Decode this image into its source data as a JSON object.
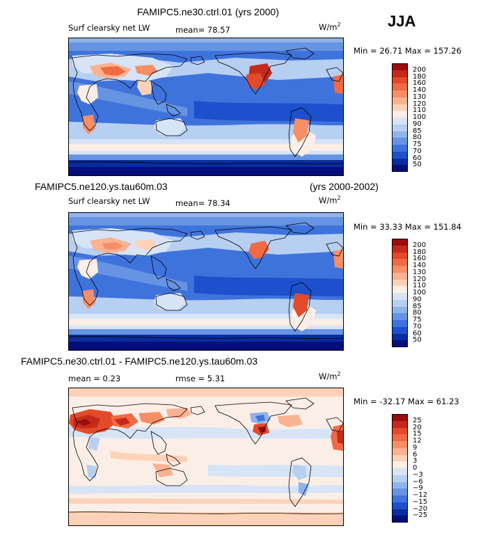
{
  "season": "JJA",
  "panels": [
    {
      "title": "FAMIPC5.ne30.ctrl.01 (yrs 2000)",
      "years": "",
      "variable": "Surf clearsky net LW",
      "mean_text": "mean=  78.57",
      "rmse_text": "",
      "units": "W/m",
      "units_exp": "2",
      "minmax_text": "Min =  26.71 Max = 157.26",
      "min": 26.71,
      "max": 157.26,
      "levels": [
        "200",
        "180",
        "160",
        "140",
        "130",
        "120",
        "110",
        "100",
        "90",
        "85",
        "80",
        "75",
        "70",
        "60",
        "50"
      ],
      "colors": [
        "#9b0d0d",
        "#c42a1a",
        "#e24a2a",
        "#f06a44",
        "#f78e66",
        "#fbb291",
        "#fdd2b8",
        "#fbeee6",
        "#d6e4f6",
        "#b7cff0",
        "#8fb3ea",
        "#6694e3",
        "#3f73dc",
        "#1e4fcc",
        "#0a2c9c",
        "#050e7a"
      ]
    },
    {
      "title": "FAMIPC5.ne120.ys.tau60m.03",
      "years": "(yrs 2000-2002)",
      "variable": "Surf clearsky net LW",
      "mean_text": "mean=  78.34",
      "rmse_text": "",
      "units": "W/m",
      "units_exp": "2",
      "minmax_text": "Min =  33.33 Max = 151.84",
      "min": 33.33,
      "max": 151.84,
      "levels": [
        "200",
        "180",
        "160",
        "140",
        "130",
        "120",
        "110",
        "100",
        "90",
        "85",
        "80",
        "75",
        "70",
        "60",
        "50"
      ],
      "colors": [
        "#9b0d0d",
        "#c42a1a",
        "#e24a2a",
        "#f06a44",
        "#f78e66",
        "#fbb291",
        "#fdd2b8",
        "#fbeee6",
        "#d6e4f6",
        "#b7cff0",
        "#8fb3ea",
        "#6694e3",
        "#3f73dc",
        "#1e4fcc",
        "#0a2c9c",
        "#050e7a"
      ]
    },
    {
      "title": "FAMIPC5.ne30.ctrl.01 - FAMIPC5.ne120.ys.tau60m.03",
      "years": "",
      "variable": "",
      "mean_text": "mean =    0.23",
      "rmse_text": "rmse =    5.31",
      "units": "W/m",
      "units_exp": "2",
      "minmax_text": "Min = -32.17 Max =  61.23",
      "min": -32.17,
      "max": 61.23,
      "levels": [
        "25",
        "20",
        "15",
        "12",
        "9",
        "6",
        "3",
        "0",
        "−3",
        "−6",
        "−9",
        "−12",
        "−15",
        "−20",
        "−25"
      ],
      "colors": [
        "#9b0d0d",
        "#c42a1a",
        "#e24a2a",
        "#f06a44",
        "#f78e66",
        "#fbb291",
        "#fdd2b8",
        "#fbeee6",
        "#d6e4f6",
        "#b7cff0",
        "#8fb3ea",
        "#6694e3",
        "#3f73dc",
        "#1e4fcc",
        "#0a2c9c",
        "#050e7a"
      ]
    }
  ]
}
